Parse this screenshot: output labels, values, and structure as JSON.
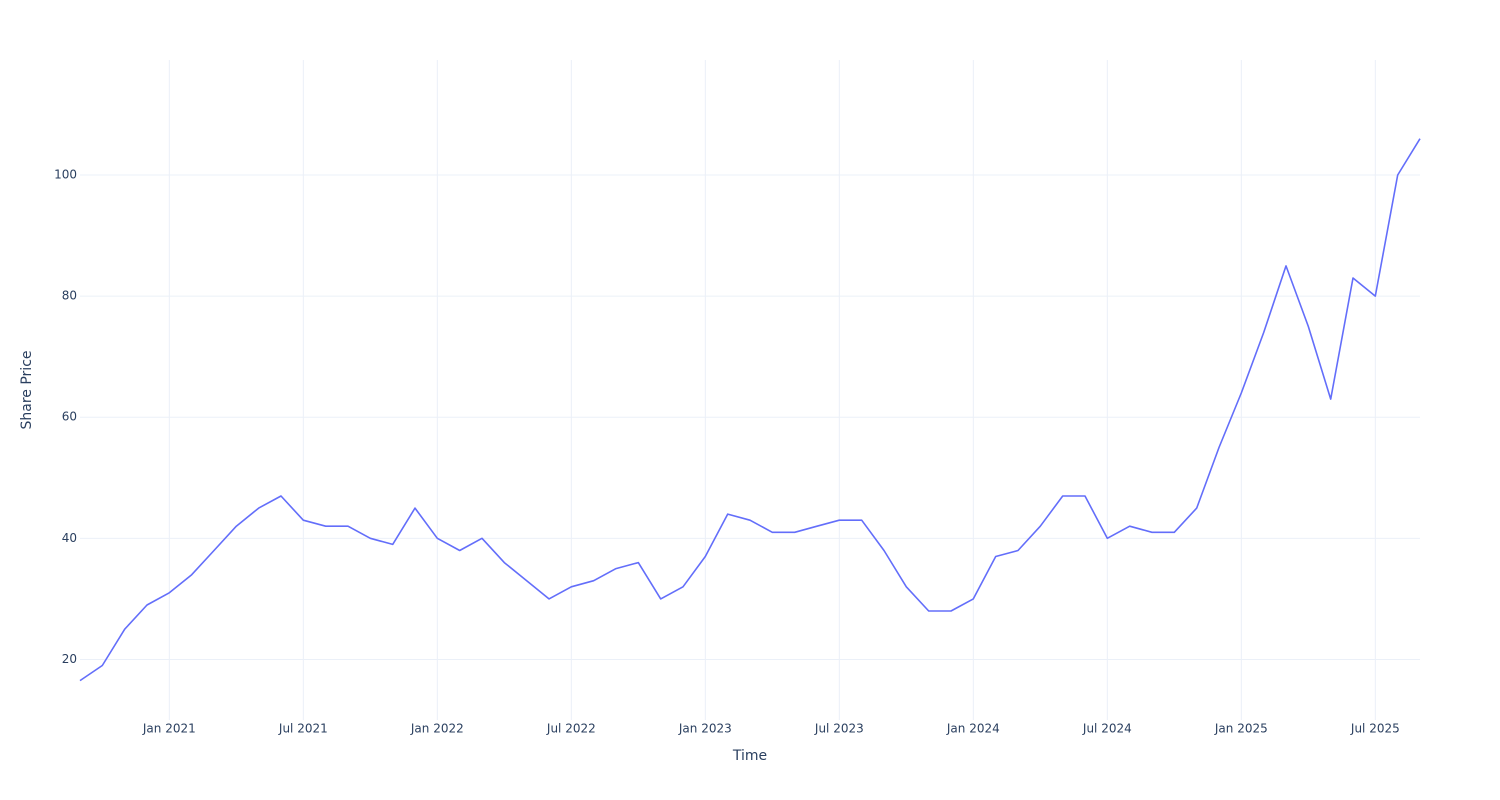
{
  "chart_data": {
    "type": "line",
    "x_label": "Time",
    "y_label": "Share Price",
    "x": [
      "2020-09",
      "2020-10",
      "2020-11",
      "2020-12",
      "2021-01",
      "2021-02",
      "2021-03",
      "2021-04",
      "2021-05",
      "2021-06",
      "2021-07",
      "2021-08",
      "2021-09",
      "2021-10",
      "2021-11",
      "2021-12",
      "2022-01",
      "2022-02",
      "2022-03",
      "2022-04",
      "2022-05",
      "2022-06",
      "2022-07",
      "2022-08",
      "2022-09",
      "2022-10",
      "2022-11",
      "2022-12",
      "2023-01",
      "2023-02",
      "2023-03",
      "2023-04",
      "2023-05",
      "2023-06",
      "2023-07",
      "2023-08",
      "2023-09",
      "2023-10",
      "2023-11",
      "2023-12",
      "2024-01",
      "2024-02",
      "2024-03",
      "2024-04",
      "2024-05",
      "2024-06",
      "2024-07",
      "2024-08",
      "2024-09",
      "2024-10",
      "2024-11",
      "2024-12",
      "2025-01",
      "2025-02",
      "2025-03",
      "2025-04",
      "2025-05",
      "2025-06",
      "2025-07",
      "2025-08",
      "2025-09"
    ],
    "series": [
      {
        "name": "Share Price",
        "color": "#636efa",
        "values": [
          16.5,
          19,
          25,
          29,
          31,
          34,
          38,
          42,
          45,
          47,
          43,
          42,
          42,
          40,
          39,
          45,
          40,
          38,
          40,
          36,
          33,
          30,
          32,
          33,
          35,
          36,
          30,
          32,
          37,
          44,
          43,
          41,
          41,
          42,
          43,
          43,
          38,
          32,
          28,
          28,
          30,
          37,
          38,
          42,
          47,
          47,
          40,
          42,
          41,
          41,
          45,
          55,
          64,
          74,
          85,
          75,
          63,
          83,
          80,
          100,
          106
        ]
      }
    ],
    "xlim": [
      "2020-09",
      "2025-09"
    ],
    "xticks": [
      {
        "value": "2021-01",
        "label": "Jan 2021"
      },
      {
        "value": "2021-07",
        "label": "Jul 2021"
      },
      {
        "value": "2022-01",
        "label": "Jan 2022"
      },
      {
        "value": "2022-07",
        "label": "Jul 2022"
      },
      {
        "value": "2023-01",
        "label": "Jan 2023"
      },
      {
        "value": "2023-07",
        "label": "Jul 2023"
      },
      {
        "value": "2024-01",
        "label": "Jan 2024"
      },
      {
        "value": "2024-07",
        "label": "Jul 2024"
      },
      {
        "value": "2025-01",
        "label": "Jan 2025"
      },
      {
        "value": "2025-07",
        "label": "Jul 2025"
      }
    ],
    "ylim": [
      10,
      119
    ],
    "yticks": [
      20,
      40,
      60,
      80,
      100
    ],
    "grid": true
  }
}
